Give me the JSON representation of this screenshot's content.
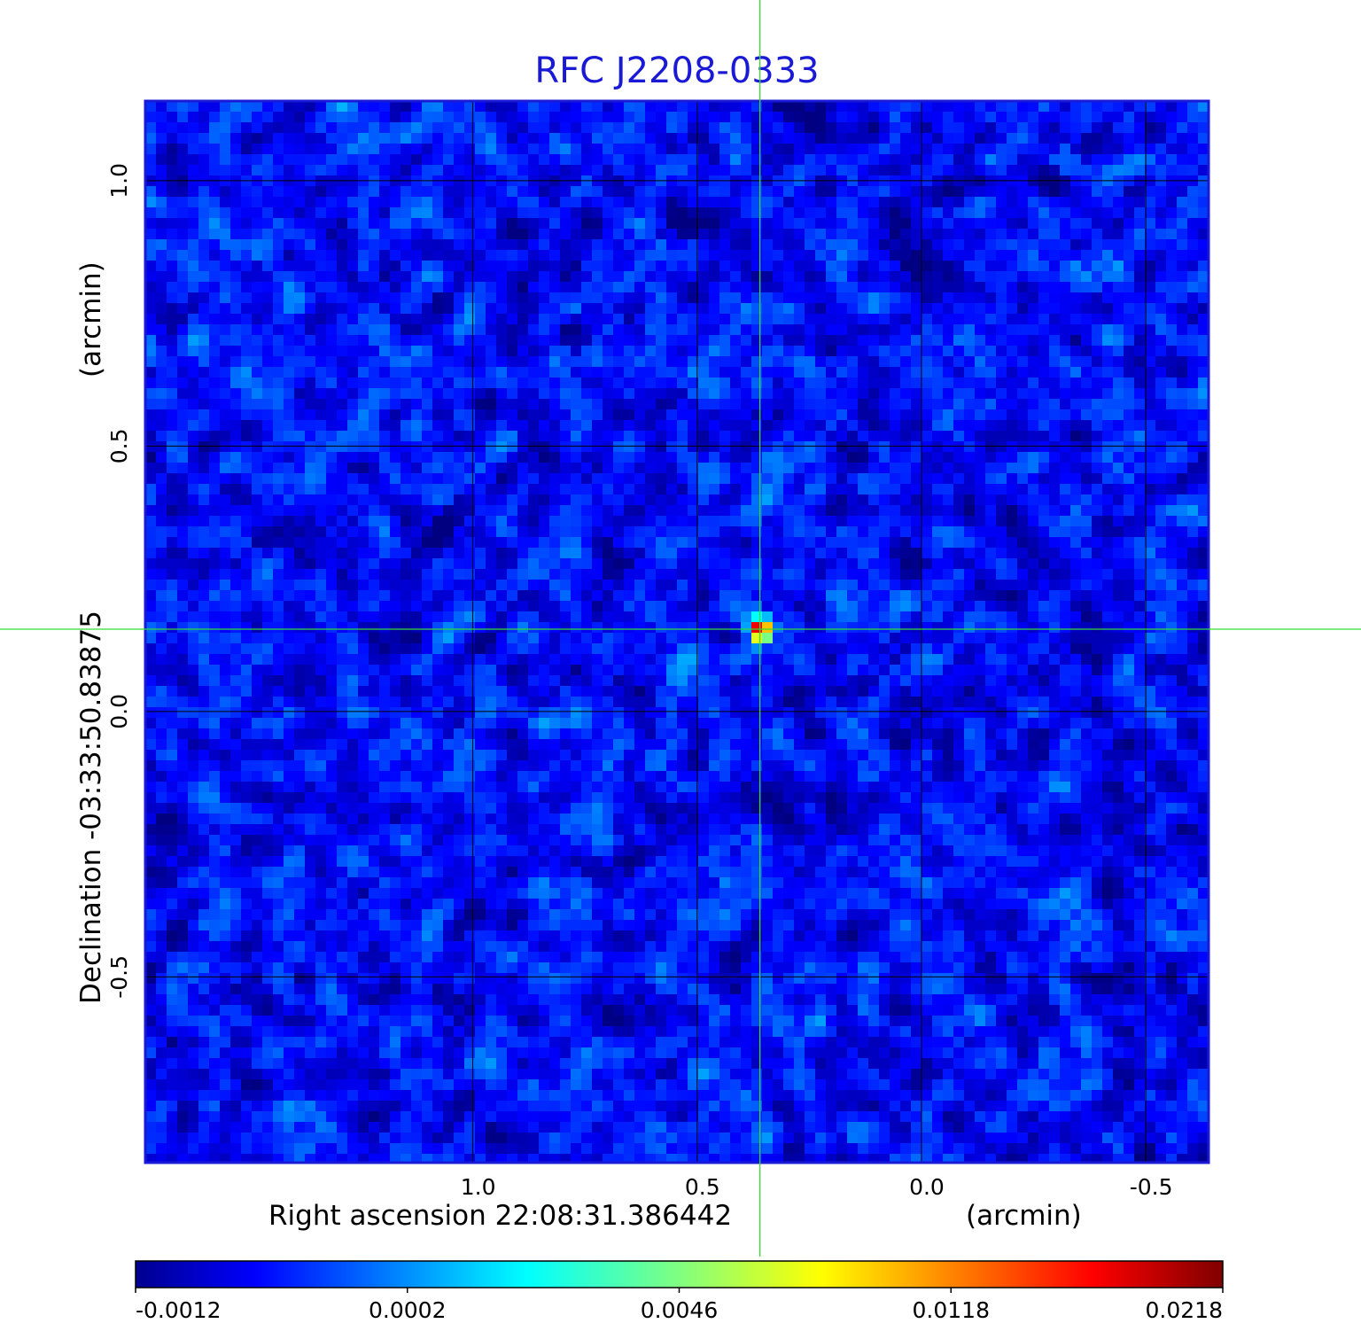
{
  "chart_data": {
    "type": "heatmap",
    "title": "RFC J2208-0333",
    "xlabel": "Right ascension  22:08:31.386442",
    "xlabel_unit": "(arcmin)",
    "ylabel": "Declination  -03:33:50.83875",
    "ylabel_unit": "(arcmin)",
    "xlim": [
      1.73,
      -0.64
    ],
    "ylim": [
      -0.85,
      1.15
    ],
    "x_ticks": [
      {
        "value": 1.0,
        "label": "1.0"
      },
      {
        "value": 0.5,
        "label": "0.5"
      },
      {
        "value": 0.0,
        "label": "0.0"
      },
      {
        "value": -0.5,
        "label": "-0.5"
      }
    ],
    "y_ticks": [
      {
        "value": 1.0,
        "label": "1.0"
      },
      {
        "value": 0.5,
        "label": "0.5"
      },
      {
        "value": 0.0,
        "label": "0.0"
      },
      {
        "value": -0.5,
        "label": "-0.5"
      }
    ],
    "grid": true,
    "crosshair": {
      "x": 0.36,
      "y": 0.155,
      "color": "#33dd33"
    },
    "source_peak": {
      "x": 0.36,
      "y": 0.155,
      "value": 0.0218
    },
    "background_noise_range": [
      -0.0012,
      0.0004
    ],
    "colormap": "jet",
    "colorbar": {
      "range": [
        -0.0012,
        0.0218
      ],
      "ticks": [
        "-0.0012",
        "0.0002",
        "0.0046",
        "0.0118",
        "0.0218"
      ]
    }
  }
}
